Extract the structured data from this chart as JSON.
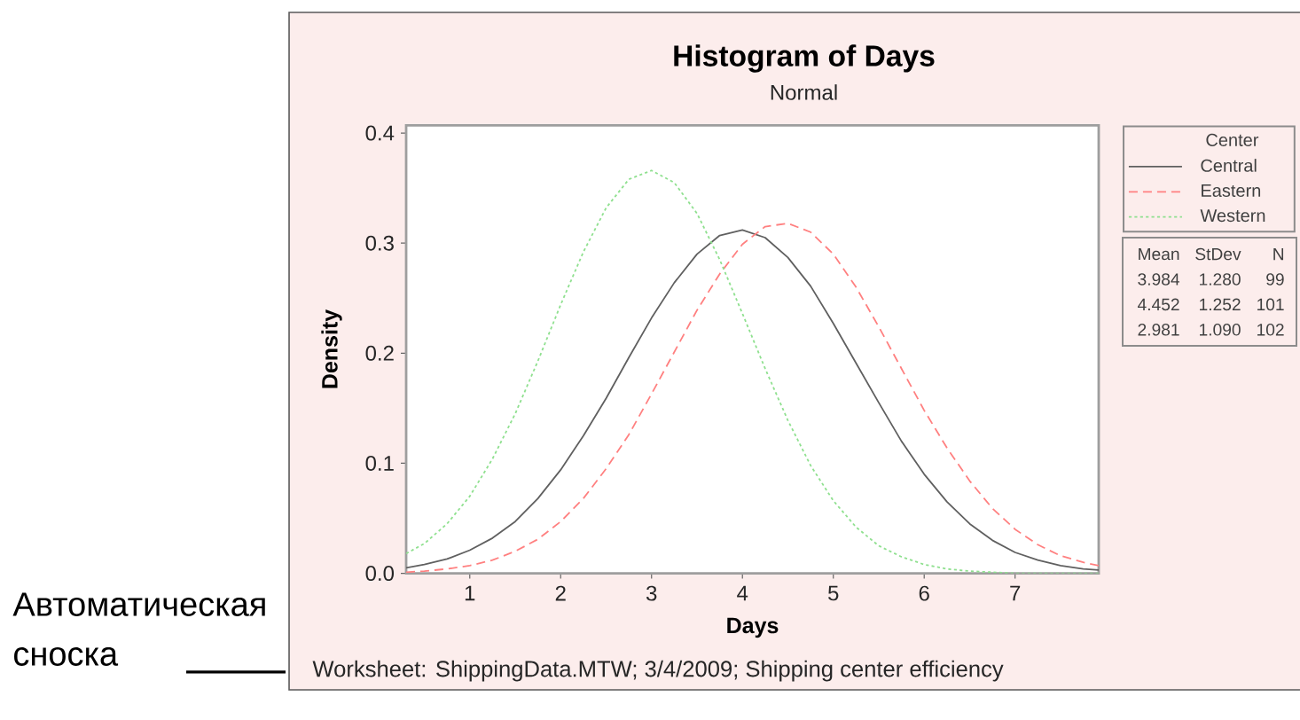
{
  "chart_data": {
    "type": "line",
    "title": "Histogram of Days",
    "subtitle": "Normal",
    "xlabel": "Days",
    "ylabel": "Density",
    "legend_title": "Center",
    "legend": "right",
    "marker": "none",
    "x": [
      0.3,
      0.5,
      0.75,
      1,
      1.25,
      1.5,
      1.75,
      2,
      2.25,
      2.5,
      2.75,
      3,
      3.25,
      3.5,
      3.75,
      4,
      4.25,
      4.5,
      4.75,
      5,
      5.25,
      5.5,
      5.75,
      6,
      6.25,
      6.5,
      6.75,
      7,
      7.25,
      7.5,
      7.75,
      7.92
    ],
    "series": [
      {
        "name": "Central",
        "color": "#606060",
        "line_style": "solid",
        "values": [
          0.005,
          0.008,
          0.013,
          0.021,
          0.032,
          0.047,
          0.068,
          0.094,
          0.125,
          0.159,
          0.196,
          0.232,
          0.264,
          0.29,
          0.307,
          0.312,
          0.305,
          0.287,
          0.261,
          0.227,
          0.191,
          0.155,
          0.12,
          0.09,
          0.065,
          0.045,
          0.03,
          0.019,
          0.012,
          0.007,
          0.004,
          0.003
        ]
      },
      {
        "name": "Eastern",
        "color": "#ff8080",
        "line_style": "dashed",
        "values": [
          0.001,
          0.002,
          0.004,
          0.007,
          0.012,
          0.02,
          0.031,
          0.047,
          0.068,
          0.095,
          0.126,
          0.163,
          0.201,
          0.239,
          0.272,
          0.299,
          0.315,
          0.318,
          0.31,
          0.29,
          0.26,
          0.224,
          0.186,
          0.148,
          0.114,
          0.084,
          0.059,
          0.04,
          0.026,
          0.016,
          0.01,
          0.007
        ]
      },
      {
        "name": "Western",
        "color": "#8fe08f",
        "line_style": "dotted",
        "values": [
          0.018,
          0.027,
          0.045,
          0.07,
          0.104,
          0.145,
          0.193,
          0.244,
          0.292,
          0.332,
          0.358,
          0.366,
          0.355,
          0.327,
          0.285,
          0.236,
          0.186,
          0.139,
          0.098,
          0.066,
          0.042,
          0.025,
          0.015,
          0.008,
          0.004,
          0.002,
          0.001,
          0,
          0,
          0,
          0,
          0
        ]
      }
    ],
    "xlim": [
      0.3,
      7.92
    ],
    "ylim": [
      0,
      0.407
    ],
    "xticks": [
      1,
      2,
      3,
      4,
      5,
      6,
      7
    ],
    "yticks": [
      {
        "value": 0,
        "label": "0.0"
      },
      0.1,
      0.2,
      0.3,
      0.4
    ],
    "annotations": [
      "Mean",
      "StDev",
      "N",
      "3.984",
      "1.280",
      "99",
      "4.452",
      "1.252",
      "101",
      "2.981",
      "1.090",
      "102",
      "Worksheet: ShippingData.MTW; 3/4/2009; Shipping center efficiency",
      "Автоматическая сноска"
    ]
  }
}
